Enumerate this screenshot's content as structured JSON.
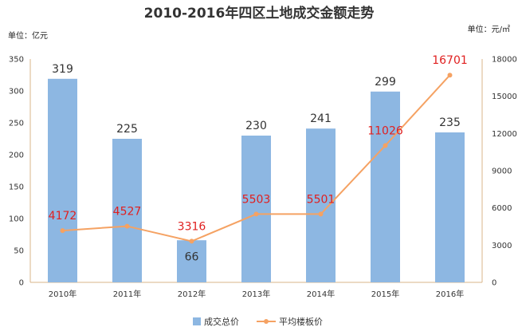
{
  "chart_data": {
    "type": "bar+line",
    "title": "2010-2016年四区土地成交金额走势",
    "left_unit": "单位：亿元",
    "right_unit": "单位：元/㎡",
    "categories": [
      "2010年",
      "2011年",
      "2012年",
      "2013年",
      "2014年",
      "2015年",
      "2016年"
    ],
    "series": [
      {
        "name": "成交总价",
        "type": "bar",
        "axis": "left",
        "color": "#8db7e2",
        "values": [
          319,
          225,
          66,
          230,
          241,
          299,
          235
        ]
      },
      {
        "name": "平均楼板价",
        "type": "line",
        "axis": "right",
        "color": "#f5a263",
        "values": [
          4172,
          4527,
          3316,
          5503,
          5501,
          11026,
          16701
        ]
      }
    ],
    "left_axis": {
      "min": 0,
      "max": 350,
      "ticks": [
        "0",
        "50",
        "100",
        "150",
        "200",
        "250",
        "300",
        "350"
      ]
    },
    "right_axis": {
      "min": 0,
      "max": 18000,
      "ticks": [
        "0",
        "3000",
        "6000",
        "9000",
        "12000",
        "15000",
        "18000"
      ]
    },
    "grid": false,
    "legend_position": "bottom"
  }
}
